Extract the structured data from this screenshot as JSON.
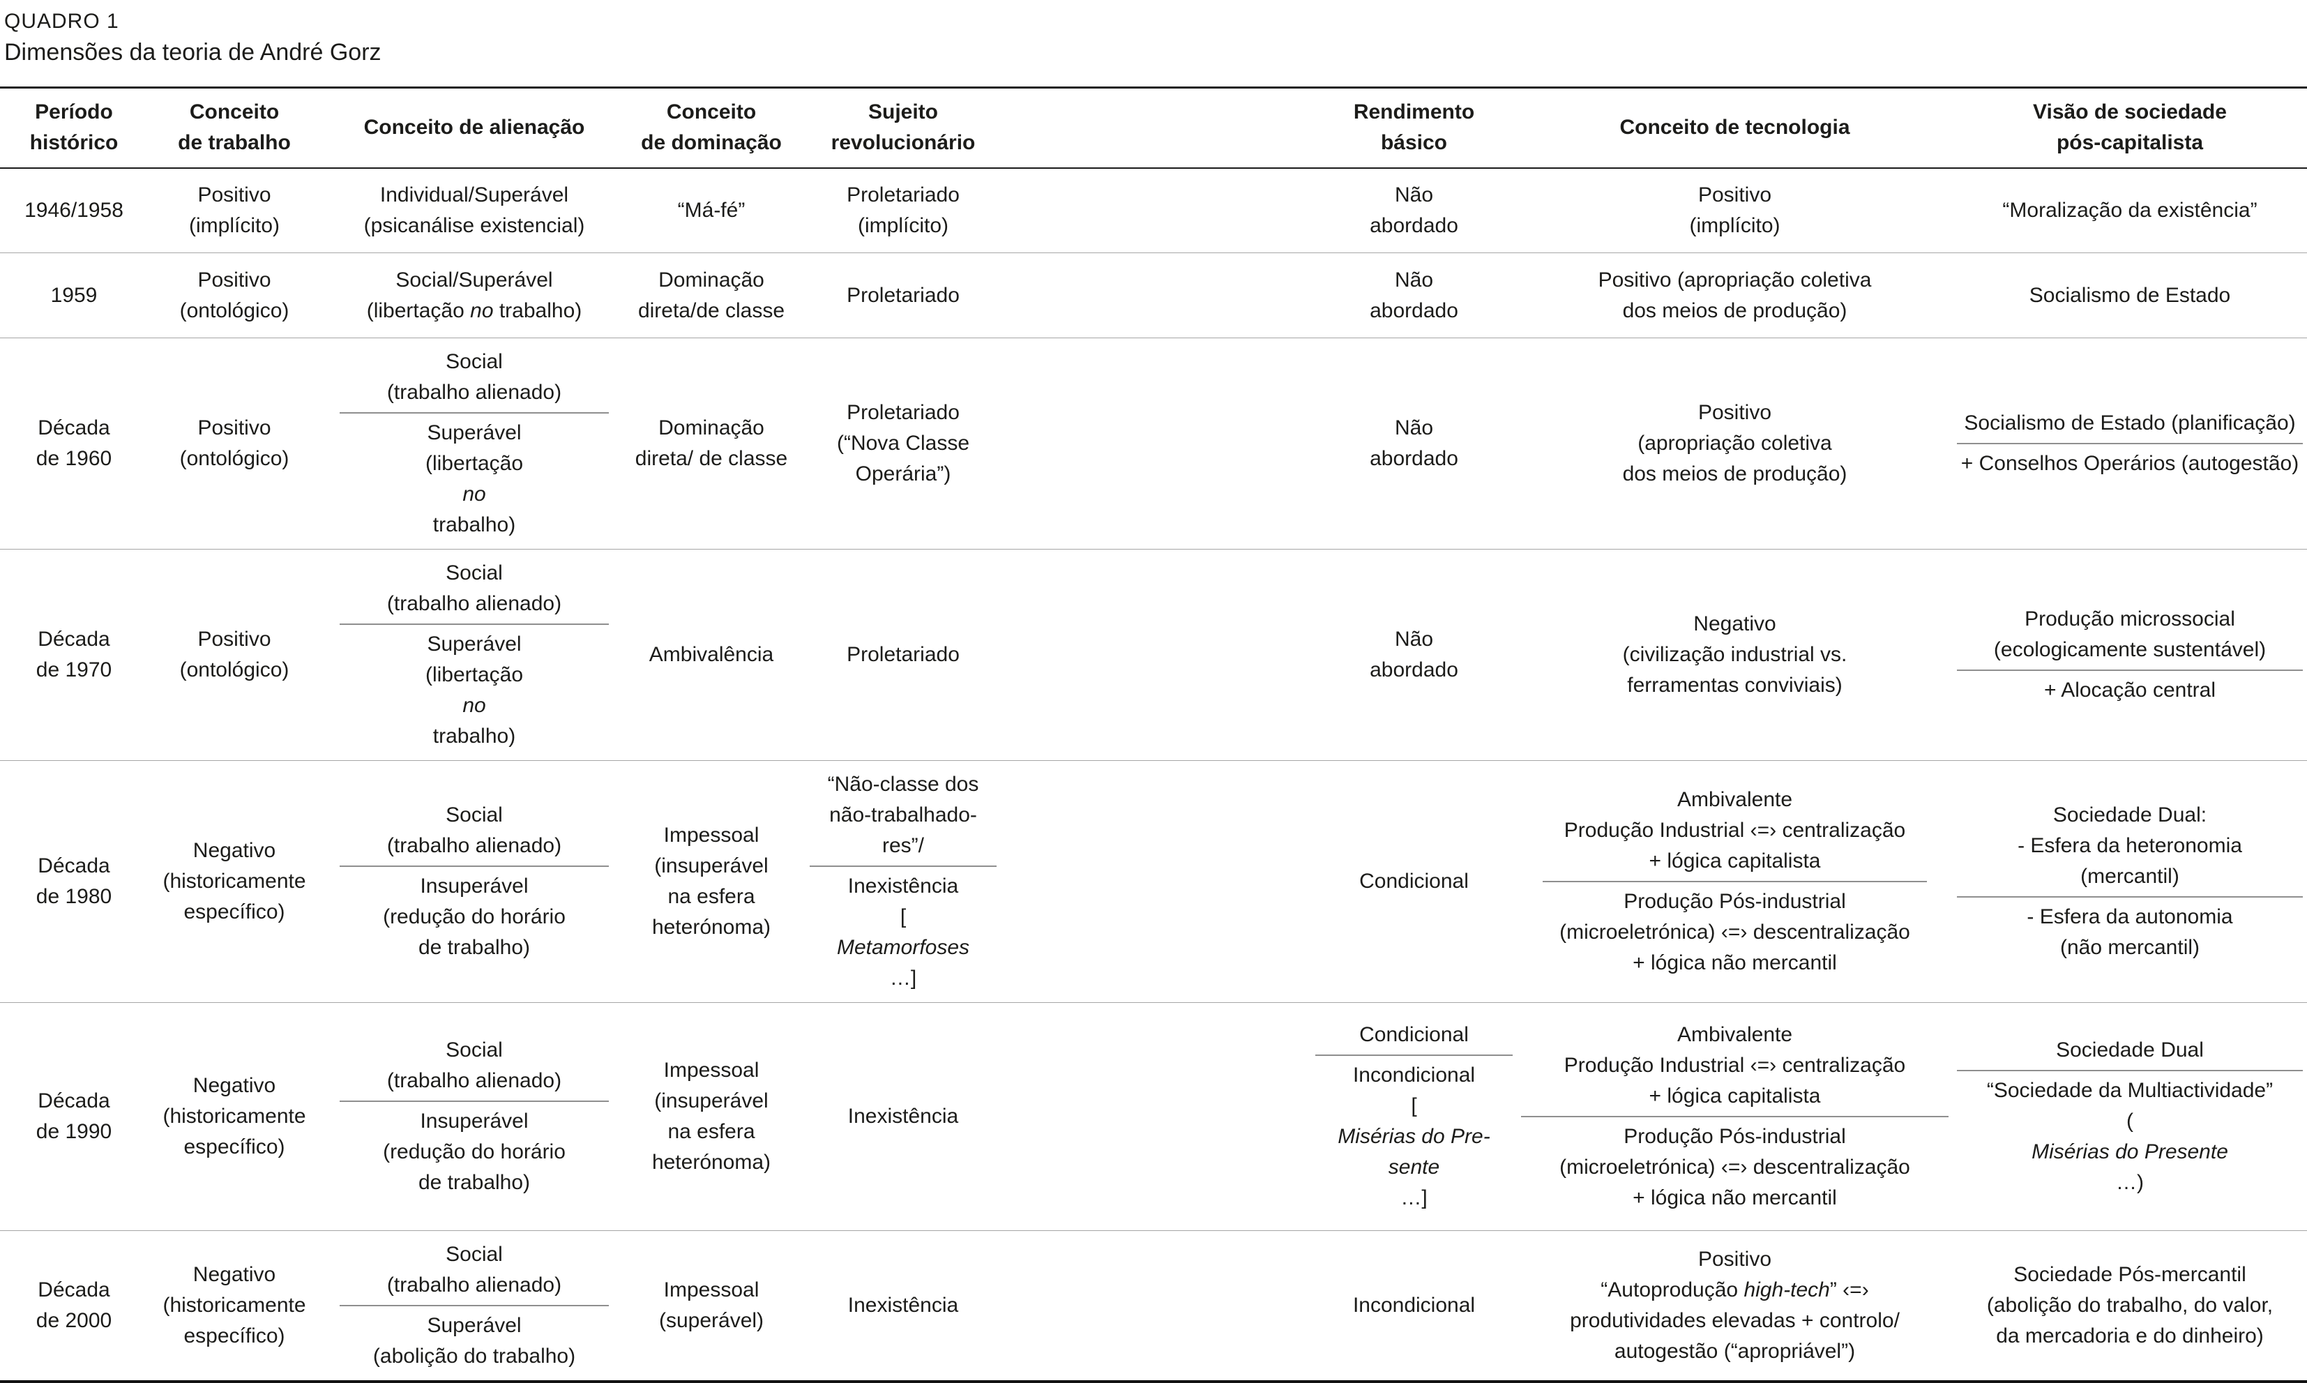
{
  "page": {
    "kicker": "QUADRO 1",
    "subtitle": "Dimensões da teoria de André Gorz"
  },
  "table": {
    "headers": {
      "periodo": "Período\nhistórico",
      "trabalho": "Conceito\nde trabalho",
      "alienacao": "Conceito de alienação",
      "dominacao": "Conceito\nde dominação",
      "sujeito": "Sujeito\nrevolucionário",
      "rendimento": "Rendimento\nbásico",
      "tecnologia": "Conceito de tecnologia",
      "visao": "Visão de sociedade\npós-capitalista"
    },
    "rows": [
      {
        "periodo": "1946/1958",
        "trabalho": {
          "text": "Positivo\n(implícito)"
        },
        "alienacao": {
          "text": "Individual/Superável\n(psicanálise existencial)"
        },
        "dominacao": {
          "text": "“Má-fé”"
        },
        "sujeito": {
          "text": "Proletariado\n(implícito)"
        },
        "rendimento": {
          "text": "Não\nabordado"
        },
        "tecnologia": {
          "text": "Positivo\n(implícito)"
        },
        "visao": {
          "text": "“Moralização da existência”"
        }
      },
      {
        "periodo": "1959",
        "trabalho": {
          "text": "Positivo\n(ontológico)"
        },
        "alienacao": {
          "text": "Social/Superável\n(libertação <i>no</i> trabalho)"
        },
        "dominacao": {
          "text": "Dominação\ndireta/de classe"
        },
        "sujeito": {
          "text": "Proletariado"
        },
        "rendimento": {
          "text": "Não\nabordado"
        },
        "tecnologia": {
          "text": "Positivo (apropriação coletiva\ndos meios de produção)"
        },
        "visao": {
          "text": "Socialismo de Estado"
        }
      },
      {
        "periodo": "Década\nde 1960",
        "trabalho": {
          "text": "Positivo\n(ontológico)"
        },
        "alienacao": {
          "top": "Social\n(trabalho alienado)",
          "bottom": "Superável\n(libertação <i>no</i> trabalho)"
        },
        "dominacao": {
          "text": "Dominação\ndireta/ de classe"
        },
        "sujeito": {
          "text": "Proletariado\n(“Nova Classe\nOperária”)"
        },
        "rendimento": {
          "text": "Não\nabordado"
        },
        "tecnologia": {
          "text": "Positivo\n(apropriação coletiva\ndos meios de produção)"
        },
        "visao": {
          "top": "Socialismo de Estado (planificação)",
          "bottom": "+ Conselhos Operários (autogestão)"
        }
      },
      {
        "periodo": "Década\nde 1970",
        "trabalho": {
          "text": "Positivo\n(ontológico)"
        },
        "alienacao": {
          "top": "Social\n(trabalho alienado)",
          "bottom": "Superável\n(libertação <i>no</i> trabalho)"
        },
        "dominacao": {
          "text": "Ambivalência"
        },
        "sujeito": {
          "text": "Proletariado"
        },
        "rendimento": {
          "text": "Não\nabordado"
        },
        "tecnologia": {
          "text": "Negativo\n(civilização industrial vs.\nferramentas conviviais)"
        },
        "visao": {
          "top": "Produção microssocial\n(ecologicamente sustentável)",
          "bottom": "+ Alocação central"
        }
      },
      {
        "periodo": "Década\nde 1980",
        "trabalho": {
          "text": "Negativo\n(historicamente\nespecífico)"
        },
        "alienacao": {
          "top": "Social\n(trabalho alienado)",
          "bottom": "Insuperável\n(redução do horário\nde trabalho)"
        },
        "dominacao": {
          "text": "Impessoal\n(insuperável\nna esfera\nheterónoma)"
        },
        "sujeito": {
          "top": "“Não-classe dos\nnão-trabalhado-\nres”/",
          "bottom": "Inexistência\n[<i>Metamorfoses</i>…]"
        },
        "rendimento": {
          "text": "Condicional"
        },
        "tecnologia": {
          "top": "Ambivalente\nProdução Industrial ‹=› centralização\n+ lógica  capitalista",
          "bottom": "Produção Pós-industrial\n(microeletrónica) ‹=› descentralização\n+ lógica não mercantil"
        },
        "visao": {
          "top": "Sociedade Dual:\n- Esfera da heteronomia\n(mercantil)",
          "bottom": "- Esfera da autonomia\n(não mercantil)"
        }
      },
      {
        "periodo": "Década\nde 1990",
        "trabalho": {
          "text": "Negativo\n(historicamente\nespecífico)"
        },
        "alienacao": {
          "top": "Social\n(trabalho alienado)",
          "bottom": "Insuperável\n(redução do horário\nde trabalho)"
        },
        "dominacao": {
          "text": "Impessoal\n(insuperável\nna esfera\nheterónoma)"
        },
        "sujeito": {
          "text": "Inexistência"
        },
        "rendimento": {
          "top": "Condicional",
          "bottom": "Incondicional\n[<i>Misérias do Pre-</i>\n<i>sente</i>…]"
        },
        "tecnologia": {
          "top": "Ambivalente\nProdução Industrial ‹=› centralização\n+ lógica  capitalista",
          "bottom": "Produção Pós-industrial\n(microeletrónica) ‹=› descentralização\n+ lógica não mercantil"
        },
        "visao": {
          "top": "Sociedade Dual",
          "bottom": "“Sociedade da Multiactividade”\n(<i>Misérias do Presente</i>…)"
        }
      },
      {
        "periodo": "Década\nde 2000",
        "trabalho": {
          "text": "Negativo\n(historicamente\nespecífico)"
        },
        "alienacao": {
          "top": "Social\n(trabalho alienado)",
          "bottom": "Superável\n(abolição do trabalho)"
        },
        "dominacao": {
          "text": "Impessoal\n(superável)"
        },
        "sujeito": {
          "text": "Inexistência"
        },
        "rendimento": {
          "text": "Incondicional"
        },
        "tecnologia": {
          "text": "Positivo\n“Autoprodução <i>high-tech</i>” ‹=›\nprodutividades elevadas + controlo/\nautogestão (“apropriável”)"
        },
        "visao": {
          "text": "Sociedade Pós-mercantil\n(abolição do trabalho, do valor,\nda mercadoria e do dinheiro)"
        }
      }
    ]
  }
}
